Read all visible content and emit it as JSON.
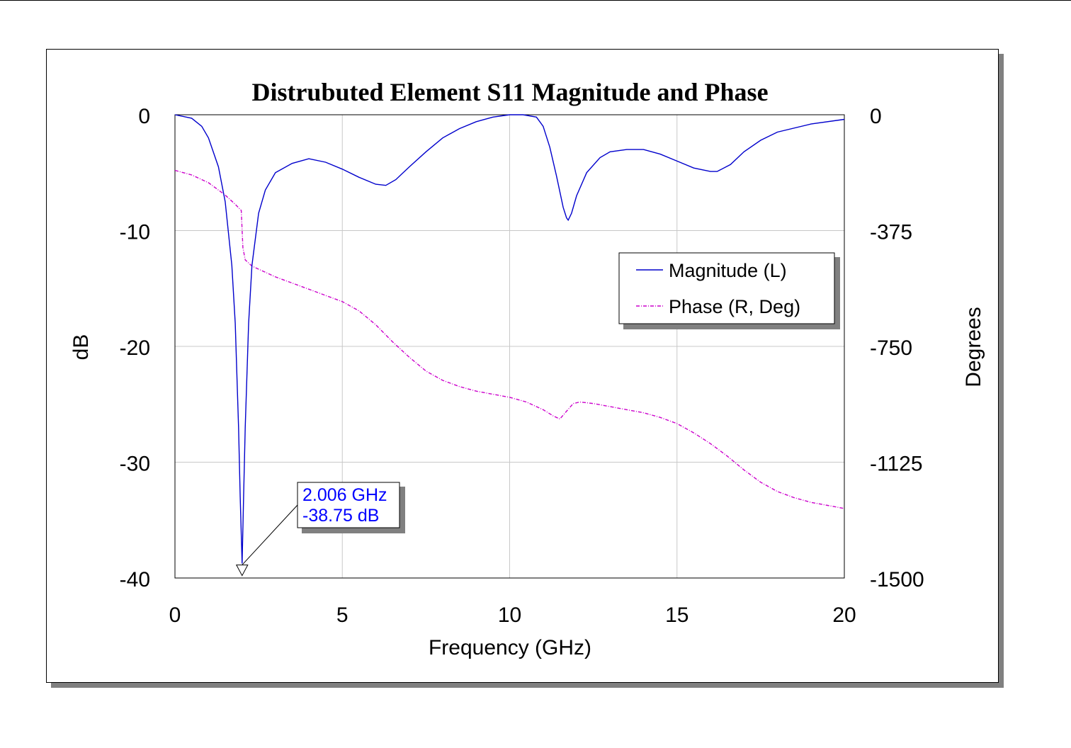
{
  "chart_data": {
    "type": "line",
    "title": "Distrubuted Element S11 Magnitude and Phase",
    "xlabel": "Frequency (GHz)",
    "ylabel_left": "dB",
    "ylabel_right": "Degrees",
    "xlim": [
      0,
      20
    ],
    "ylim_left": [
      -40,
      0
    ],
    "ylim_right": [
      -1500,
      0
    ],
    "x_ticks": [
      "0",
      "5",
      "10",
      "15",
      "20"
    ],
    "y_ticks_left": [
      "0",
      "-10",
      "-20",
      "-30",
      "-40"
    ],
    "y_ticks_right": [
      "0",
      "-375",
      "-750",
      "-1125",
      "-1500"
    ],
    "grid": true,
    "legend_position": "middle-right",
    "series": [
      {
        "name": "Magnitude (L)",
        "axis": "left",
        "color": "#0000cc",
        "style": "solid",
        "x": [
          0,
          0.5,
          0.8,
          1.0,
          1.3,
          1.5,
          1.7,
          1.8,
          1.9,
          1.95,
          2.006,
          2.05,
          2.1,
          2.2,
          2.3,
          2.5,
          2.7,
          3.0,
          3.5,
          4.0,
          4.5,
          5.0,
          5.5,
          6.0,
          6.3,
          6.6,
          7.0,
          7.5,
          8.0,
          8.5,
          9.0,
          9.5,
          10.0,
          10.4,
          10.8,
          11.0,
          11.2,
          11.4,
          11.6,
          11.7,
          11.75,
          11.85,
          12.0,
          12.3,
          12.7,
          13.0,
          13.5,
          14.0,
          14.5,
          15.0,
          15.5,
          16.0,
          16.2,
          16.6,
          17.0,
          17.5,
          18.0,
          19.0,
          20.0
        ],
        "y": [
          0,
          -0.3,
          -1.0,
          -2.0,
          -4.5,
          -7.5,
          -13,
          -18,
          -27,
          -33,
          -38.75,
          -33,
          -27,
          -18,
          -13,
          -8.5,
          -6.5,
          -5.0,
          -4.2,
          -3.8,
          -4.1,
          -4.7,
          -5.4,
          -6.0,
          -6.1,
          -5.6,
          -4.5,
          -3.2,
          -2.0,
          -1.2,
          -0.6,
          -0.2,
          0,
          0,
          -0.2,
          -1.0,
          -2.8,
          -5.3,
          -8.0,
          -8.9,
          -9.1,
          -8.5,
          -7.0,
          -5.0,
          -3.7,
          -3.2,
          -3.0,
          -3.0,
          -3.4,
          -4.0,
          -4.6,
          -4.9,
          -4.9,
          -4.3,
          -3.2,
          -2.2,
          -1.5,
          -0.8,
          -0.4
        ]
      },
      {
        "name": "Phase (R, Deg)",
        "axis": "right",
        "color": "#cc00cc",
        "style": "dashdot",
        "x": [
          0,
          0.5,
          1.0,
          1.5,
          1.8,
          1.98,
          2.03,
          2.1,
          2.3,
          2.6,
          3.0,
          3.5,
          4.0,
          4.5,
          5.0,
          5.5,
          6.0,
          6.5,
          7.0,
          7.5,
          8.0,
          8.5,
          9.0,
          9.5,
          10.0,
          10.5,
          11.0,
          11.3,
          11.5,
          11.7,
          11.9,
          12.1,
          12.5,
          13.0,
          13.5,
          14.0,
          14.5,
          15.0,
          15.5,
          16.0,
          16.5,
          17.0,
          17.5,
          18.0,
          18.5,
          19.0,
          19.5,
          20.0
        ],
        "y": [
          -180,
          -195,
          -220,
          -260,
          -290,
          -310,
          -430,
          -470,
          -490,
          -505,
          -525,
          -545,
          -565,
          -585,
          -605,
          -635,
          -680,
          -735,
          -785,
          -830,
          -860,
          -880,
          -895,
          -905,
          -915,
          -930,
          -955,
          -975,
          -985,
          -960,
          -935,
          -930,
          -935,
          -945,
          -955,
          -965,
          -980,
          -1000,
          -1030,
          -1065,
          -1105,
          -1150,
          -1190,
          -1220,
          -1240,
          -1255,
          -1265,
          -1275
        ]
      }
    ],
    "annotation": {
      "line1": "2.006 GHz",
      "line2": "-38.75 dB",
      "x": 2.006,
      "y": -38.75
    }
  }
}
